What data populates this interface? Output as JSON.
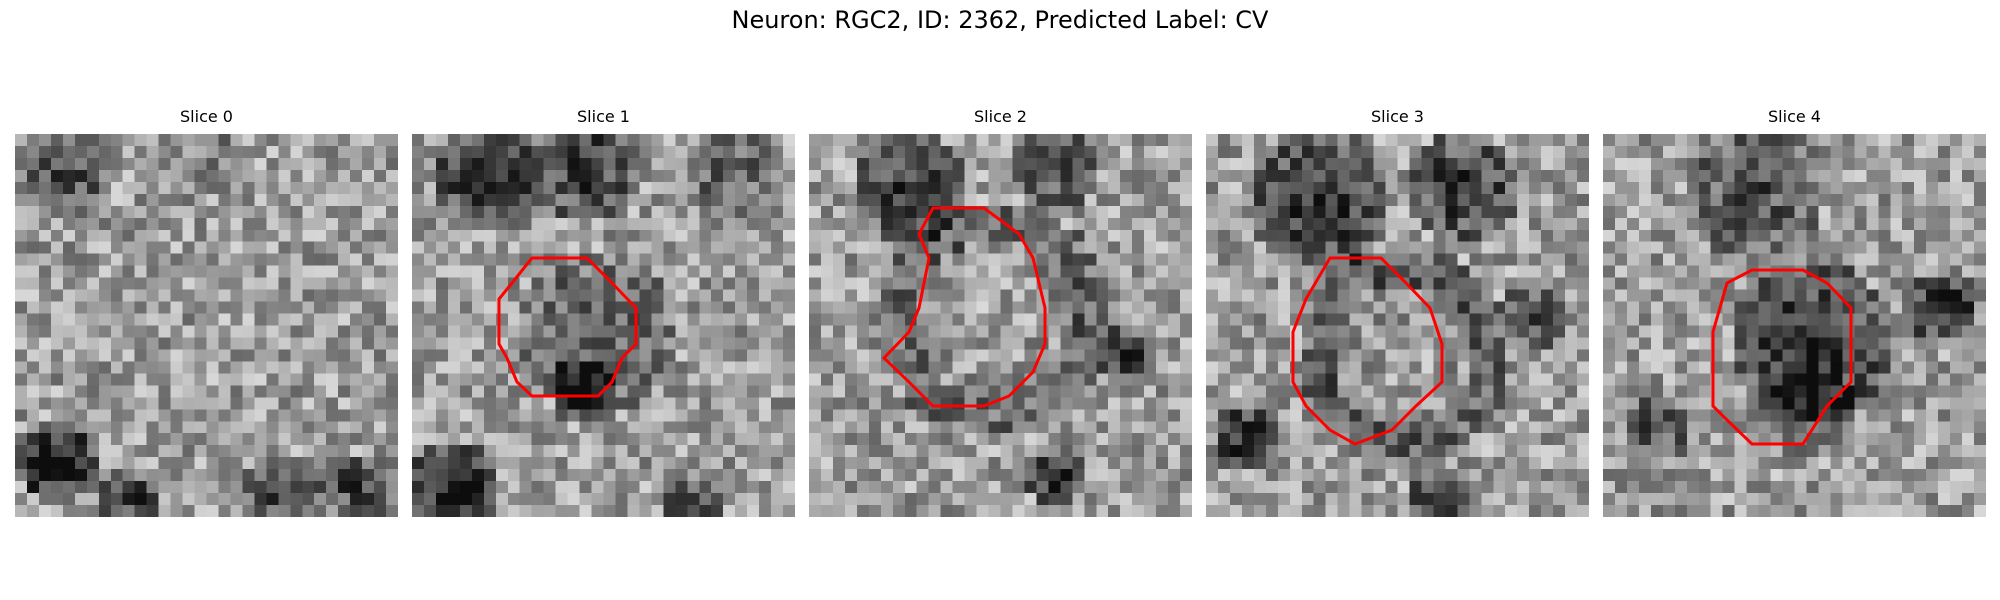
{
  "figure": {
    "title": "Neuron: RGC2, ID: 2362, Predicted Label: CV"
  },
  "panels": [
    {
      "title": "Slice 0",
      "contour": false
    },
    {
      "title": "Slice 1",
      "contour": true
    },
    {
      "title": "Slice 2",
      "contour": true
    },
    {
      "title": "Slice 3",
      "contour": true
    },
    {
      "title": "Slice 4",
      "contour": true
    }
  ],
  "colors": {
    "contour": "#ff0000",
    "colormap": "grayscale"
  }
}
